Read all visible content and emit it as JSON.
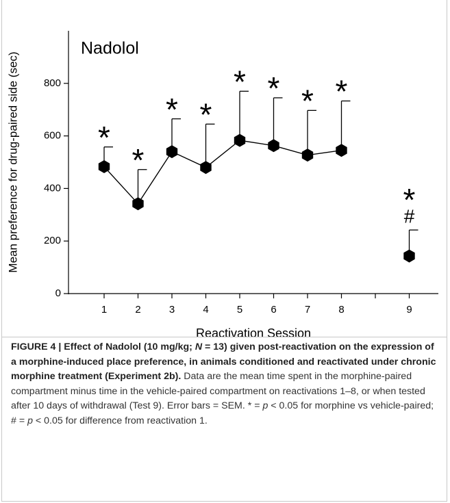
{
  "chart_data": {
    "type": "line",
    "title": "Nadolol",
    "y_label": "Mean preference for drug-paired side (sec)",
    "x_label": "Reactivation Session",
    "categories": [
      "1",
      "2",
      "3",
      "4",
      "5",
      "6",
      "7",
      "8",
      null,
      "9"
    ],
    "values": [
      483,
      342,
      540,
      480,
      583,
      563,
      527,
      545,
      null,
      143
    ],
    "errors": [
      75,
      130,
      125,
      165,
      187,
      182,
      170,
      188,
      null,
      99
    ],
    "significance": [
      "*",
      "*",
      "*",
      "*",
      "*",
      "*",
      "*",
      "*",
      null,
      "*"
    ],
    "difference_marks": [
      null,
      null,
      null,
      null,
      null,
      null,
      null,
      null,
      null,
      "#"
    ],
    "color": "#000000",
    "ylim": [
      0,
      1000
    ],
    "yticks": [
      0,
      200,
      400,
      600,
      800
    ],
    "grid": false
  },
  "caption": [
    "FIGURE 4 | Effect of Nadolol (10 mg/kg; ",
    "N",
    " = 13) given post-reactivation on the expression of a morphine-induced place preference, in animals conditioned and reactivated under chronic morphine treatment (Experiment 2b).",
    "Data are the mean time spent in the morphine-paired compartment minus time in the vehicle-paired compartment on reactivations 1–8, or when tested after 10 days of withdrawal (Test 9). Error bars = SEM. * = ",
    "p",
    " < 0.05 for morphine vs vehicle-paired; # = ",
    "p",
    " < 0.05 for difference from reactivation 1."
  ]
}
